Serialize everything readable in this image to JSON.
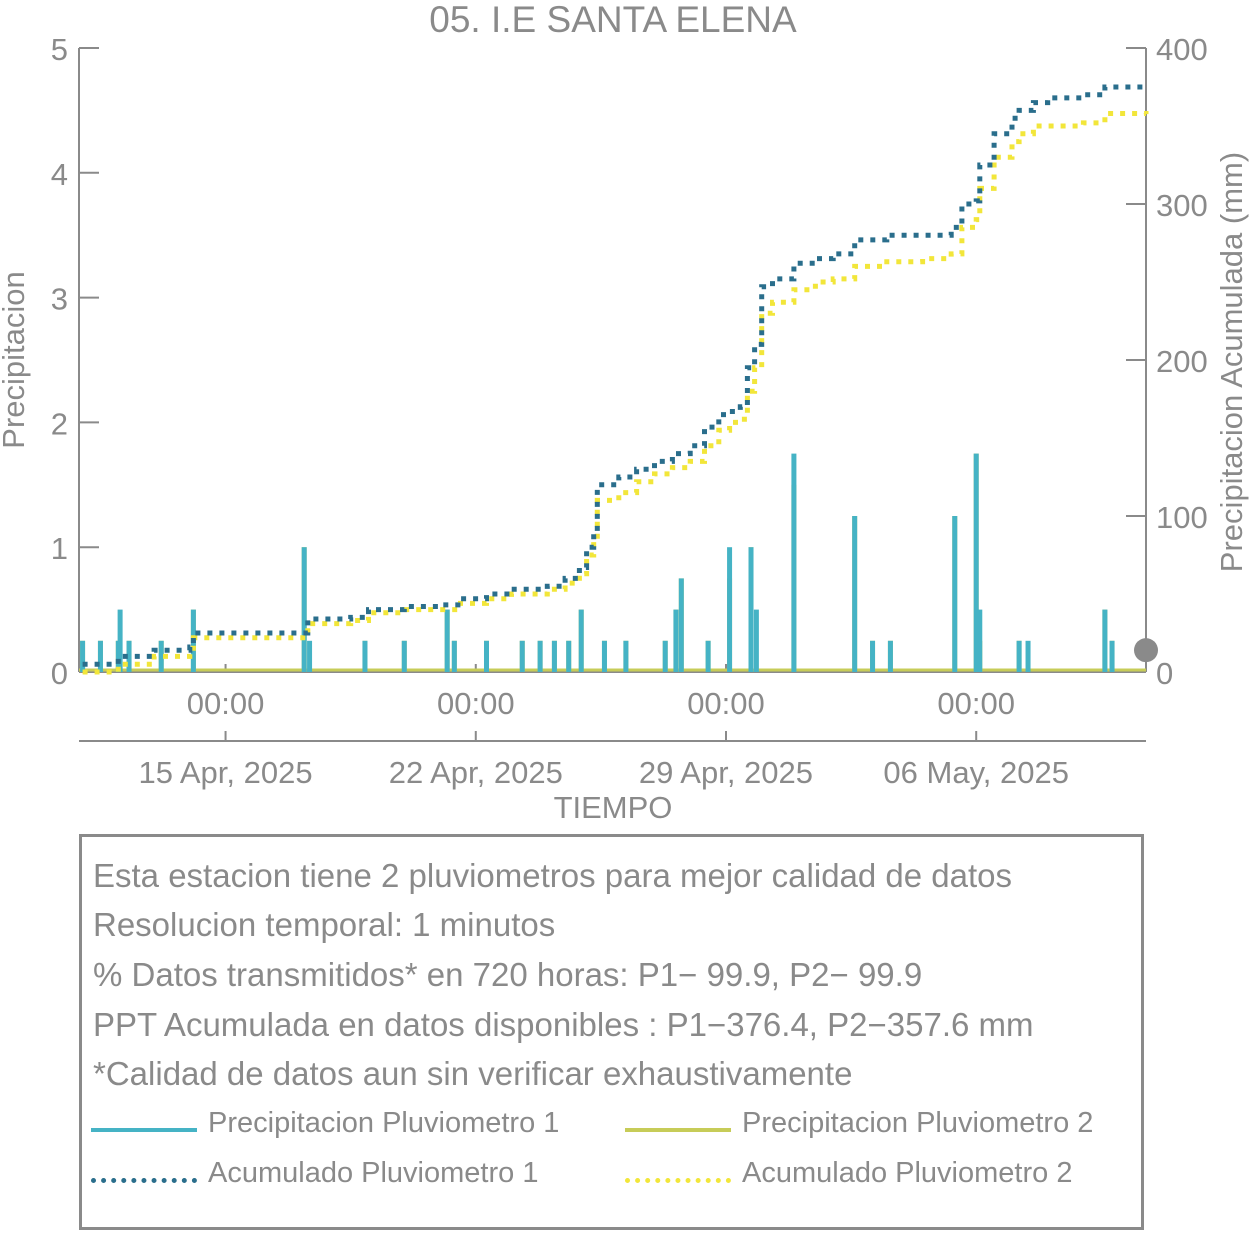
{
  "chart_data": {
    "type": "bar",
    "title": "05. I.E SANTA ELENA",
    "xlabel": "TIEMPO",
    "ylabel_left": "Precipitacion",
    "ylabel_right": "Precipitacion Acumulada (mm)",
    "ylim_left": [
      0,
      5
    ],
    "ylim_right": [
      0,
      400
    ],
    "yticks_left": [
      "0",
      "1",
      "2",
      "3",
      "4",
      "5"
    ],
    "yticks_right": [
      "0",
      "100",
      "200",
      "300",
      "400"
    ],
    "xlim_days": [
      -4.1,
      25.75
    ],
    "x_time_ticks": [
      "00:00",
      "00:00",
      "00:00",
      "00:00"
    ],
    "x_date_ticks": [
      "15 Apr, 2025",
      "22 Apr, 2025",
      "29 Apr, 2025",
      "06 May, 2025"
    ],
    "x_tick_days": [
      0,
      7,
      14,
      21
    ],
    "grid": false,
    "series": [
      {
        "name": "Precipitacion Pluviometro 1",
        "kind": "bar",
        "axis": "left",
        "color": "#45b3c5",
        "points": [
          [
            -4.0,
            0.25
          ],
          [
            -3.5,
            0.25
          ],
          [
            -3.0,
            0.25
          ],
          [
            -2.95,
            0.5
          ],
          [
            -2.7,
            0.25
          ],
          [
            -1.8,
            0.25
          ],
          [
            -0.9,
            0.5
          ],
          [
            2.2,
            1.0
          ],
          [
            2.35,
            0.25
          ],
          [
            3.9,
            0.25
          ],
          [
            5.0,
            0.25
          ],
          [
            6.2,
            0.5
          ],
          [
            6.4,
            0.25
          ],
          [
            7.3,
            0.25
          ],
          [
            8.3,
            0.25
          ],
          [
            8.8,
            0.25
          ],
          [
            9.2,
            0.25
          ],
          [
            9.6,
            0.25
          ],
          [
            9.95,
            0.5
          ],
          [
            10.6,
            0.25
          ],
          [
            11.2,
            0.25
          ],
          [
            12.3,
            0.25
          ],
          [
            12.6,
            0.5
          ],
          [
            12.75,
            0.75
          ],
          [
            13.5,
            0.25
          ],
          [
            14.1,
            1.0
          ],
          [
            14.7,
            1.0
          ],
          [
            14.85,
            0.5
          ],
          [
            15.9,
            1.75
          ],
          [
            17.6,
            1.25
          ],
          [
            18.1,
            0.25
          ],
          [
            18.6,
            0.25
          ],
          [
            20.4,
            1.25
          ],
          [
            21.0,
            1.75
          ],
          [
            21.1,
            0.5
          ],
          [
            22.2,
            0.25
          ],
          [
            22.45,
            0.25
          ],
          [
            24.6,
            0.5
          ],
          [
            24.8,
            0.25
          ]
        ]
      },
      {
        "name": "Precipitacion Pluviometro 2",
        "kind": "bar",
        "axis": "left",
        "color": "#c7cc58",
        "points": [
          [
            -4.0,
            0.25
          ],
          [
            -3.5,
            0.25
          ],
          [
            -3.0,
            0.25
          ],
          [
            -2.7,
            0.25
          ],
          [
            -1.8,
            0.25
          ],
          [
            -0.9,
            0.5
          ],
          [
            2.2,
            1.0
          ],
          [
            3.9,
            0.25
          ],
          [
            5.0,
            0.25
          ],
          [
            6.2,
            0.5
          ],
          [
            6.4,
            0.25
          ],
          [
            7.3,
            0.25
          ],
          [
            8.3,
            0.25
          ],
          [
            8.8,
            0.25
          ],
          [
            9.2,
            0.25
          ],
          [
            9.6,
            0.25
          ],
          [
            9.95,
            0.5
          ],
          [
            10.6,
            0.25
          ],
          [
            11.2,
            0.25
          ],
          [
            12.3,
            0.25
          ],
          [
            12.6,
            0.5
          ],
          [
            12.75,
            0.75
          ],
          [
            13.5,
            0.25
          ],
          [
            14.1,
            0.75
          ],
          [
            14.7,
            1.0
          ],
          [
            15.9,
            1.5
          ],
          [
            17.6,
            1.25
          ],
          [
            18.1,
            0.25
          ],
          [
            18.6,
            0.25
          ],
          [
            20.4,
            1.25
          ],
          [
            21.0,
            1.75
          ],
          [
            21.1,
            0.25
          ],
          [
            22.2,
            0.25
          ],
          [
            24.6,
            0.5
          ],
          [
            24.8,
            0.25
          ]
        ]
      },
      {
        "name": "Acumulado Pluviometro 1",
        "kind": "line",
        "axis": "right",
        "color": "#2a6e8c",
        "points": [
          [
            -4.0,
            5
          ],
          [
            -3.0,
            10
          ],
          [
            -2.0,
            14
          ],
          [
            -1.0,
            16
          ],
          [
            -0.9,
            25
          ],
          [
            0.0,
            25
          ],
          [
            1.0,
            25
          ],
          [
            2.1,
            25
          ],
          [
            2.3,
            34
          ],
          [
            3.5,
            35
          ],
          [
            4.0,
            40
          ],
          [
            5.0,
            42
          ],
          [
            6.0,
            43
          ],
          [
            6.5,
            47
          ],
          [
            7.3,
            50
          ],
          [
            8.0,
            53
          ],
          [
            9.0,
            55
          ],
          [
            9.5,
            60
          ],
          [
            9.9,
            67
          ],
          [
            10.1,
            80
          ],
          [
            10.3,
            90
          ],
          [
            10.4,
            120
          ],
          [
            11.0,
            125
          ],
          [
            11.5,
            130
          ],
          [
            12.0,
            135
          ],
          [
            12.5,
            140
          ],
          [
            13.0,
            145
          ],
          [
            13.4,
            157
          ],
          [
            13.8,
            165
          ],
          [
            14.1,
            167
          ],
          [
            14.4,
            170
          ],
          [
            14.6,
            195
          ],
          [
            14.8,
            210
          ],
          [
            15.0,
            247
          ],
          [
            15.3,
            252
          ],
          [
            15.9,
            262
          ],
          [
            16.5,
            265
          ],
          [
            17.0,
            268
          ],
          [
            17.6,
            277
          ],
          [
            18.5,
            280
          ],
          [
            19.5,
            280
          ],
          [
            20.3,
            285
          ],
          [
            20.6,
            300
          ],
          [
            21.0,
            302
          ],
          [
            21.1,
            325
          ],
          [
            21.5,
            345
          ],
          [
            22.0,
            355
          ],
          [
            22.2,
            360
          ],
          [
            22.6,
            365
          ],
          [
            23.0,
            368
          ],
          [
            24.0,
            370
          ],
          [
            24.6,
            375
          ],
          [
            25.75,
            376.4
          ]
        ]
      },
      {
        "name": "Acumulado Pluviometro 2",
        "kind": "line",
        "axis": "right",
        "color": "#f2e63a",
        "points": [
          [
            -4.0,
            0
          ],
          [
            -3.0,
            5
          ],
          [
            -2.0,
            10
          ],
          [
            -1.0,
            13
          ],
          [
            -0.9,
            22
          ],
          [
            0.0,
            22
          ],
          [
            1.0,
            22
          ],
          [
            2.1,
            22
          ],
          [
            2.3,
            31
          ],
          [
            3.5,
            33
          ],
          [
            4.0,
            38
          ],
          [
            5.0,
            40
          ],
          [
            6.0,
            40
          ],
          [
            6.5,
            44
          ],
          [
            7.3,
            47
          ],
          [
            8.0,
            50
          ],
          [
            9.0,
            53
          ],
          [
            9.5,
            57
          ],
          [
            9.9,
            63
          ],
          [
            10.1,
            75
          ],
          [
            10.3,
            85
          ],
          [
            10.4,
            110
          ],
          [
            11.0,
            115
          ],
          [
            11.5,
            122
          ],
          [
            12.0,
            127
          ],
          [
            12.5,
            131
          ],
          [
            13.0,
            135
          ],
          [
            13.4,
            145
          ],
          [
            13.8,
            155
          ],
          [
            14.1,
            160
          ],
          [
            14.4,
            162
          ],
          [
            14.6,
            180
          ],
          [
            14.8,
            195
          ],
          [
            15.0,
            230
          ],
          [
            15.3,
            237
          ],
          [
            15.9,
            245
          ],
          [
            16.5,
            250
          ],
          [
            17.0,
            252
          ],
          [
            17.6,
            260
          ],
          [
            18.5,
            263
          ],
          [
            19.5,
            265
          ],
          [
            20.3,
            268
          ],
          [
            20.6,
            285
          ],
          [
            21.0,
            290
          ],
          [
            21.1,
            310
          ],
          [
            21.5,
            330
          ],
          [
            22.0,
            340
          ],
          [
            22.2,
            345
          ],
          [
            22.6,
            350
          ],
          [
            23.0,
            350
          ],
          [
            24.0,
            352
          ],
          [
            24.6,
            358
          ],
          [
            25.75,
            357.6
          ]
        ]
      }
    ],
    "marker_color": "#8a8a8a"
  },
  "info": {
    "line1": "Esta estacion tiene 2 pluviometros para mejor calidad de datos",
    "line2": "Resolucion temporal: 1 minutos",
    "line3": "% Datos transmitidos* en 720 horas: P1− 99.9, P2− 99.9",
    "line4": "PPT Acumulada en datos disponibles : P1−376.4, P2−357.6 mm",
    "line5": "*Calidad de datos aun sin verificar exhaustivamente"
  },
  "legend": {
    "p1": "Precipitacion Pluviometro 1",
    "p2": "Precipitacion Pluviometro 2",
    "a1": "Acumulado Pluviometro 1",
    "a2": "Acumulado Pluviometro 2"
  }
}
